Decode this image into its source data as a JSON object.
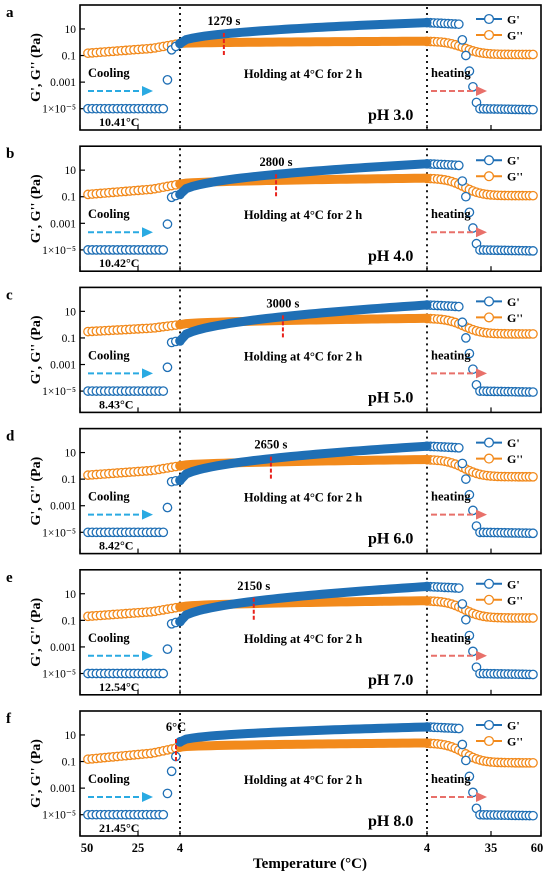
{
  "figure": {
    "xlabel": "Temperature (°C)",
    "ylabel": "G', G'' (Pa)",
    "x_tick_labels": [
      "50",
      "25",
      "4",
      "4",
      "35",
      "60"
    ],
    "colors": {
      "G_prime": "#1f6fb5",
      "G_double_prime": "#f28a1c",
      "cooling_arrow": "#2aaae2",
      "heating_arrow": "#e8706a",
      "crossover_marker": "#e8221c"
    }
  },
  "chart_data": [
    {
      "type": "line",
      "panel_label": "a",
      "ph_label": "pH 3.0",
      "cooling_label": "Cooling",
      "heating_label": "heating",
      "holding_label": "Holding at 4°C for 2 h",
      "gel_temp_label": "10.41°C",
      "crossover_label": "1279 s",
      "y_tick_labels": [
        "10",
        "0.1",
        "0.001",
        "1×10⁻⁵"
      ],
      "y_log_range": [
        -6,
        2.2
      ],
      "series": [
        {
          "name": "G'"
        },
        {
          "name": "G''"
        }
      ],
      "G_prime": {
        "cool_base": 1e-05,
        "cool_jump": 0.3,
        "hold_start": 0.8,
        "hold_end": 30,
        "heat_base": 1e-05
      },
      "G_double_prime": {
        "cool_start": 0.15,
        "cool_end": 0.8,
        "hold_end": 1.2,
        "heat_end": 0.12
      },
      "crossover_time_s": 1279,
      "hold_total_s": 7200
    },
    {
      "type": "line",
      "panel_label": "b",
      "ph_label": "pH 4.0",
      "cooling_label": "Cooling",
      "heating_label": "heating",
      "holding_label": "Holding at 4°C for 2 h",
      "gel_temp_label": "10.42°C",
      "crossover_label": "2800 s",
      "y_tick_labels": [
        "10",
        "0.1",
        "0.001",
        "1×10⁻⁵"
      ],
      "y_log_range": [
        -6,
        2.2
      ],
      "series": [
        {
          "name": "G'"
        },
        {
          "name": "G''"
        }
      ],
      "G_prime": {
        "cool_base": 1e-05,
        "cool_jump": 0.1,
        "hold_start": 0.15,
        "hold_end": 30,
        "heat_base": 1e-05
      },
      "G_double_prime": {
        "cool_start": 0.15,
        "cool_end": 0.9,
        "hold_end": 2.5,
        "heat_end": 0.12
      },
      "crossover_time_s": 2800,
      "hold_total_s": 7200
    },
    {
      "type": "line",
      "panel_label": "c",
      "ph_label": "pH 5.0",
      "cooling_label": "Cooling",
      "heating_label": "heating",
      "holding_label": "Holding at 4°C for 2 h",
      "gel_temp_label": "8.43°C",
      "crossover_label": "3000 s",
      "y_tick_labels": [
        "10",
        "0.1",
        "0.001",
        "1×10⁻⁵"
      ],
      "y_log_range": [
        -6,
        2.2
      ],
      "series": [
        {
          "name": "G'"
        },
        {
          "name": "G''"
        }
      ],
      "G_prime": {
        "cool_base": 1e-05,
        "cool_jump": 0.05,
        "hold_start": 0.06,
        "hold_end": 30,
        "heat_base": 1e-05
      },
      "G_double_prime": {
        "cool_start": 0.3,
        "cool_end": 1.0,
        "hold_end": 3.0,
        "heat_end": 0.2
      },
      "crossover_time_s": 3000,
      "hold_total_s": 7200
    },
    {
      "type": "line",
      "panel_label": "d",
      "ph_label": "pH 6.0",
      "cooling_label": "Cooling",
      "heating_label": "heating",
      "holding_label": "Holding at 4°C for 2 h",
      "gel_temp_label": "8.42°C",
      "crossover_label": "2650 s",
      "y_tick_labels": [
        "10",
        "0.1",
        "0.001",
        "1×10⁻⁵"
      ],
      "y_log_range": [
        -6,
        2.2
      ],
      "series": [
        {
          "name": "G'"
        },
        {
          "name": "G''"
        }
      ],
      "G_prime": {
        "cool_base": 1e-05,
        "cool_jump": 0.07,
        "hold_start": 0.08,
        "hold_end": 30,
        "heat_base": 1e-05
      },
      "G_double_prime": {
        "cool_start": 0.2,
        "cool_end": 1.0,
        "hold_end": 3.0,
        "heat_end": 0.15
      },
      "crossover_time_s": 2650,
      "hold_total_s": 7200
    },
    {
      "type": "line",
      "panel_label": "e",
      "ph_label": "pH 7.0",
      "cooling_label": "Cooling",
      "heating_label": "heating",
      "holding_label": "Holding at 4°C for 2 h",
      "gel_temp_label": "12.54°C",
      "crossover_label": "2150 s",
      "y_tick_labels": [
        "10",
        "0.1",
        "0.001",
        "1×10⁻⁵"
      ],
      "y_log_range": [
        -6,
        2.2
      ],
      "series": [
        {
          "name": "G'"
        },
        {
          "name": "G''"
        }
      ],
      "G_prime": {
        "cool_base": 1e-05,
        "cool_jump": 0.06,
        "hold_start": 0.08,
        "hold_end": 35,
        "heat_base": 1e-05
      },
      "G_double_prime": {
        "cool_start": 0.2,
        "cool_end": 1.0,
        "hold_end": 3.0,
        "heat_end": 0.15
      },
      "crossover_time_s": 2150,
      "hold_total_s": 7200
    },
    {
      "type": "line",
      "panel_label": "f",
      "ph_label": "pH 8.0",
      "cooling_label": "Cooling",
      "heating_label": "heating",
      "holding_label": "Holding at 4°C for 2 h",
      "gel_temp_label": "21.45°C",
      "crossover_label": "6°C",
      "y_tick_labels": [
        "10",
        "0.1",
        "0.001",
        "1×10⁻⁵"
      ],
      "y_log_range": [
        -6,
        2.2
      ],
      "series": [
        {
          "name": "G'"
        },
        {
          "name": "G''"
        }
      ],
      "G_prime": {
        "cool_base": 1e-05,
        "cool_jump": 0.02,
        "hold_start": 3.0,
        "hold_end": 40,
        "heat_base": 1e-05
      },
      "G_double_prime": {
        "cool_start": 0.15,
        "cool_end": 1.2,
        "hold_end": 2.5,
        "heat_end": 0.08
      },
      "crossover_temp_c": 6,
      "hold_total_s": 7200
    }
  ]
}
